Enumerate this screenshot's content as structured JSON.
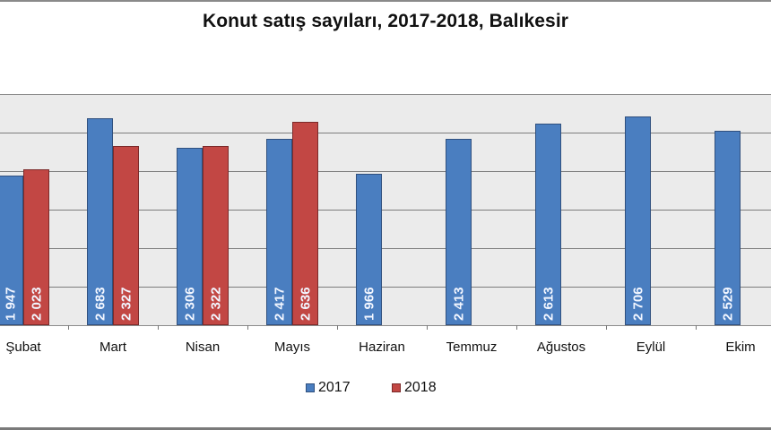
{
  "chart_data": {
    "type": "bar",
    "title": "Konut satış sayıları, 2017-2018, Balıkesir",
    "xlabel": "",
    "ylabel": "",
    "ylim": [
      0,
      3000
    ],
    "grid": true,
    "legend_position": "bottom",
    "categories": [
      "Şubat",
      "Mart",
      "Nisan",
      "Mayıs",
      "Haziran",
      "Temmuz",
      "Ağustos",
      "Eylül",
      "Ekim"
    ],
    "series": [
      {
        "name": "2017",
        "color": "#4a7ec0",
        "values": [
          1947,
          2683,
          2306,
          2417,
          1966,
          2413,
          2613,
          2706,
          2529
        ],
        "labels": [
          "1 947",
          "2 683",
          "2 306",
          "2 417",
          "1 966",
          "2 413",
          "2 613",
          "2 706",
          "2 529"
        ]
      },
      {
        "name": "2018",
        "color": "#c24744",
        "values": [
          2023,
          2327,
          2322,
          2636,
          null,
          null,
          null,
          null,
          null
        ],
        "labels": [
          "2 023",
          "2 327",
          "2 322",
          "2 636",
          null,
          null,
          null,
          null,
          null
        ]
      }
    ]
  },
  "title": "Konut satış sayıları, 2017-2018, Balıkesir",
  "legend": {
    "items": [
      {
        "label": "2017",
        "color": "#4a7ec0"
      },
      {
        "label": "2018",
        "color": "#c24744"
      }
    ]
  }
}
